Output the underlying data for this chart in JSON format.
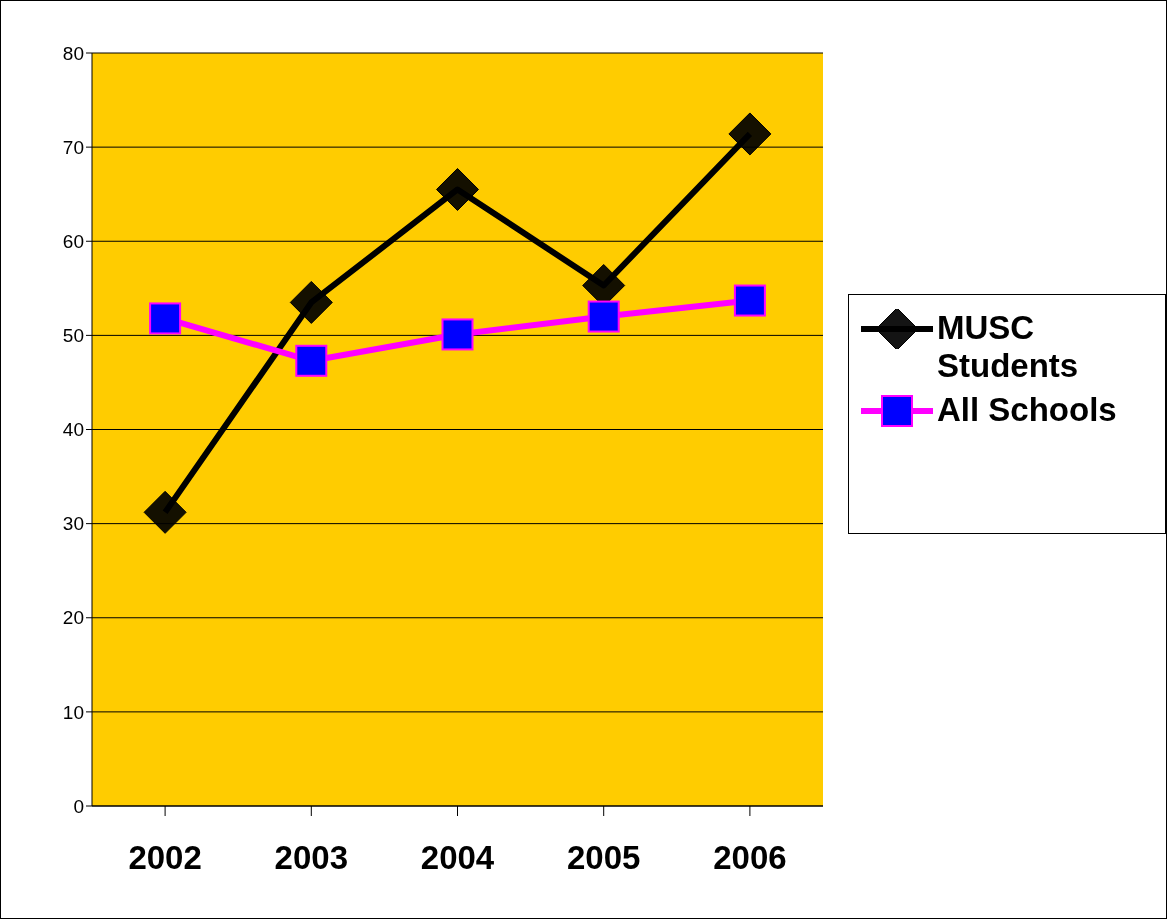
{
  "chart_data": {
    "type": "line",
    "categories": [
      "2002",
      "2003",
      "2004",
      "2005",
      "2006"
    ],
    "series": [
      {
        "name": "MUSC Students",
        "color": "#000000",
        "marker": "diamond",
        "values": [
          31.2,
          53.5,
          65.5,
          55.3,
          71.4
        ]
      },
      {
        "name": "All Schools",
        "color": "#ff00ff",
        "marker": "square",
        "values": [
          51.8,
          47.3,
          50.1,
          52.0,
          53.7
        ]
      }
    ],
    "ylim": [
      0,
      80
    ],
    "yticks": [
      0,
      10,
      20,
      30,
      40,
      50,
      60,
      70,
      80
    ],
    "grid": "y",
    "legend": "right",
    "line_style": "solid"
  }
}
